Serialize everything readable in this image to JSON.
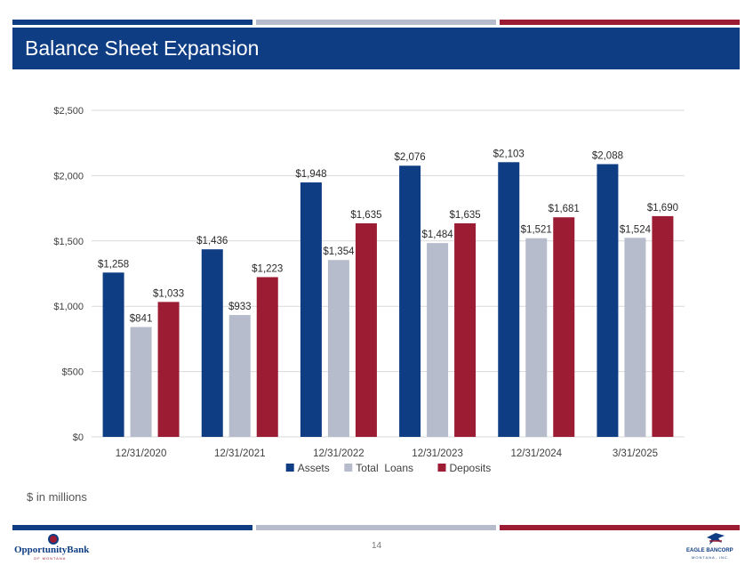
{
  "header": {
    "title": "Balance Sheet Expansion"
  },
  "colors": {
    "navy": "#0e3d84",
    "gray": "#b7bccd",
    "red": "#9b1c33"
  },
  "chart_data": {
    "type": "bar",
    "title": "",
    "categories": [
      "12/31/2020",
      "12/31/2021",
      "12/31/2022",
      "12/31/2023",
      "12/31/2024",
      "3/31/2025"
    ],
    "series": [
      {
        "name": "Assets",
        "color": "#0e3d84",
        "values": [
          1258,
          1436,
          1948,
          2076,
          2103,
          2088
        ],
        "labels": [
          "$1,258",
          "$1,436",
          "$1,948",
          "$2,076",
          "$2,103",
          "$2,088"
        ]
      },
      {
        "name": "Total  Loans",
        "color": "#b7bccd",
        "values": [
          841,
          933,
          1354,
          1484,
          1521,
          1524
        ],
        "labels": [
          "$841",
          "$933",
          "$1,354",
          "$1,484",
          "$1,521",
          "$1,524"
        ]
      },
      {
        "name": "Deposits",
        "color": "#9b1c33",
        "values": [
          1033,
          1223,
          1635,
          1635,
          1681,
          1690
        ],
        "labels": [
          "$1,033",
          "$1,223",
          "$1,635",
          "$1,635",
          "$1,681",
          "$1,690"
        ]
      }
    ],
    "yticks": [
      0,
      500,
      1000,
      1500,
      2000,
      2500
    ],
    "ytick_labels": [
      "$0",
      "$500",
      "$1,000",
      "$1,500",
      "$2,000",
      "$2,500"
    ],
    "ylim": [
      0,
      2500
    ],
    "xlabel": "",
    "ylabel": "",
    "grid": true,
    "legend": "bottom-center"
  },
  "footnote": "$ in millions",
  "page_number": "14",
  "logos": {
    "left": {
      "brand": "OpportunityBank",
      "sub": "OF MONTANA",
      "icon": "opportunity-bank-logo-icon"
    },
    "right": {
      "brand": "EAGLE BANCORP",
      "sub": "MONTANA, INC.",
      "icon": "eagle-bancorp-logo-icon"
    }
  }
}
